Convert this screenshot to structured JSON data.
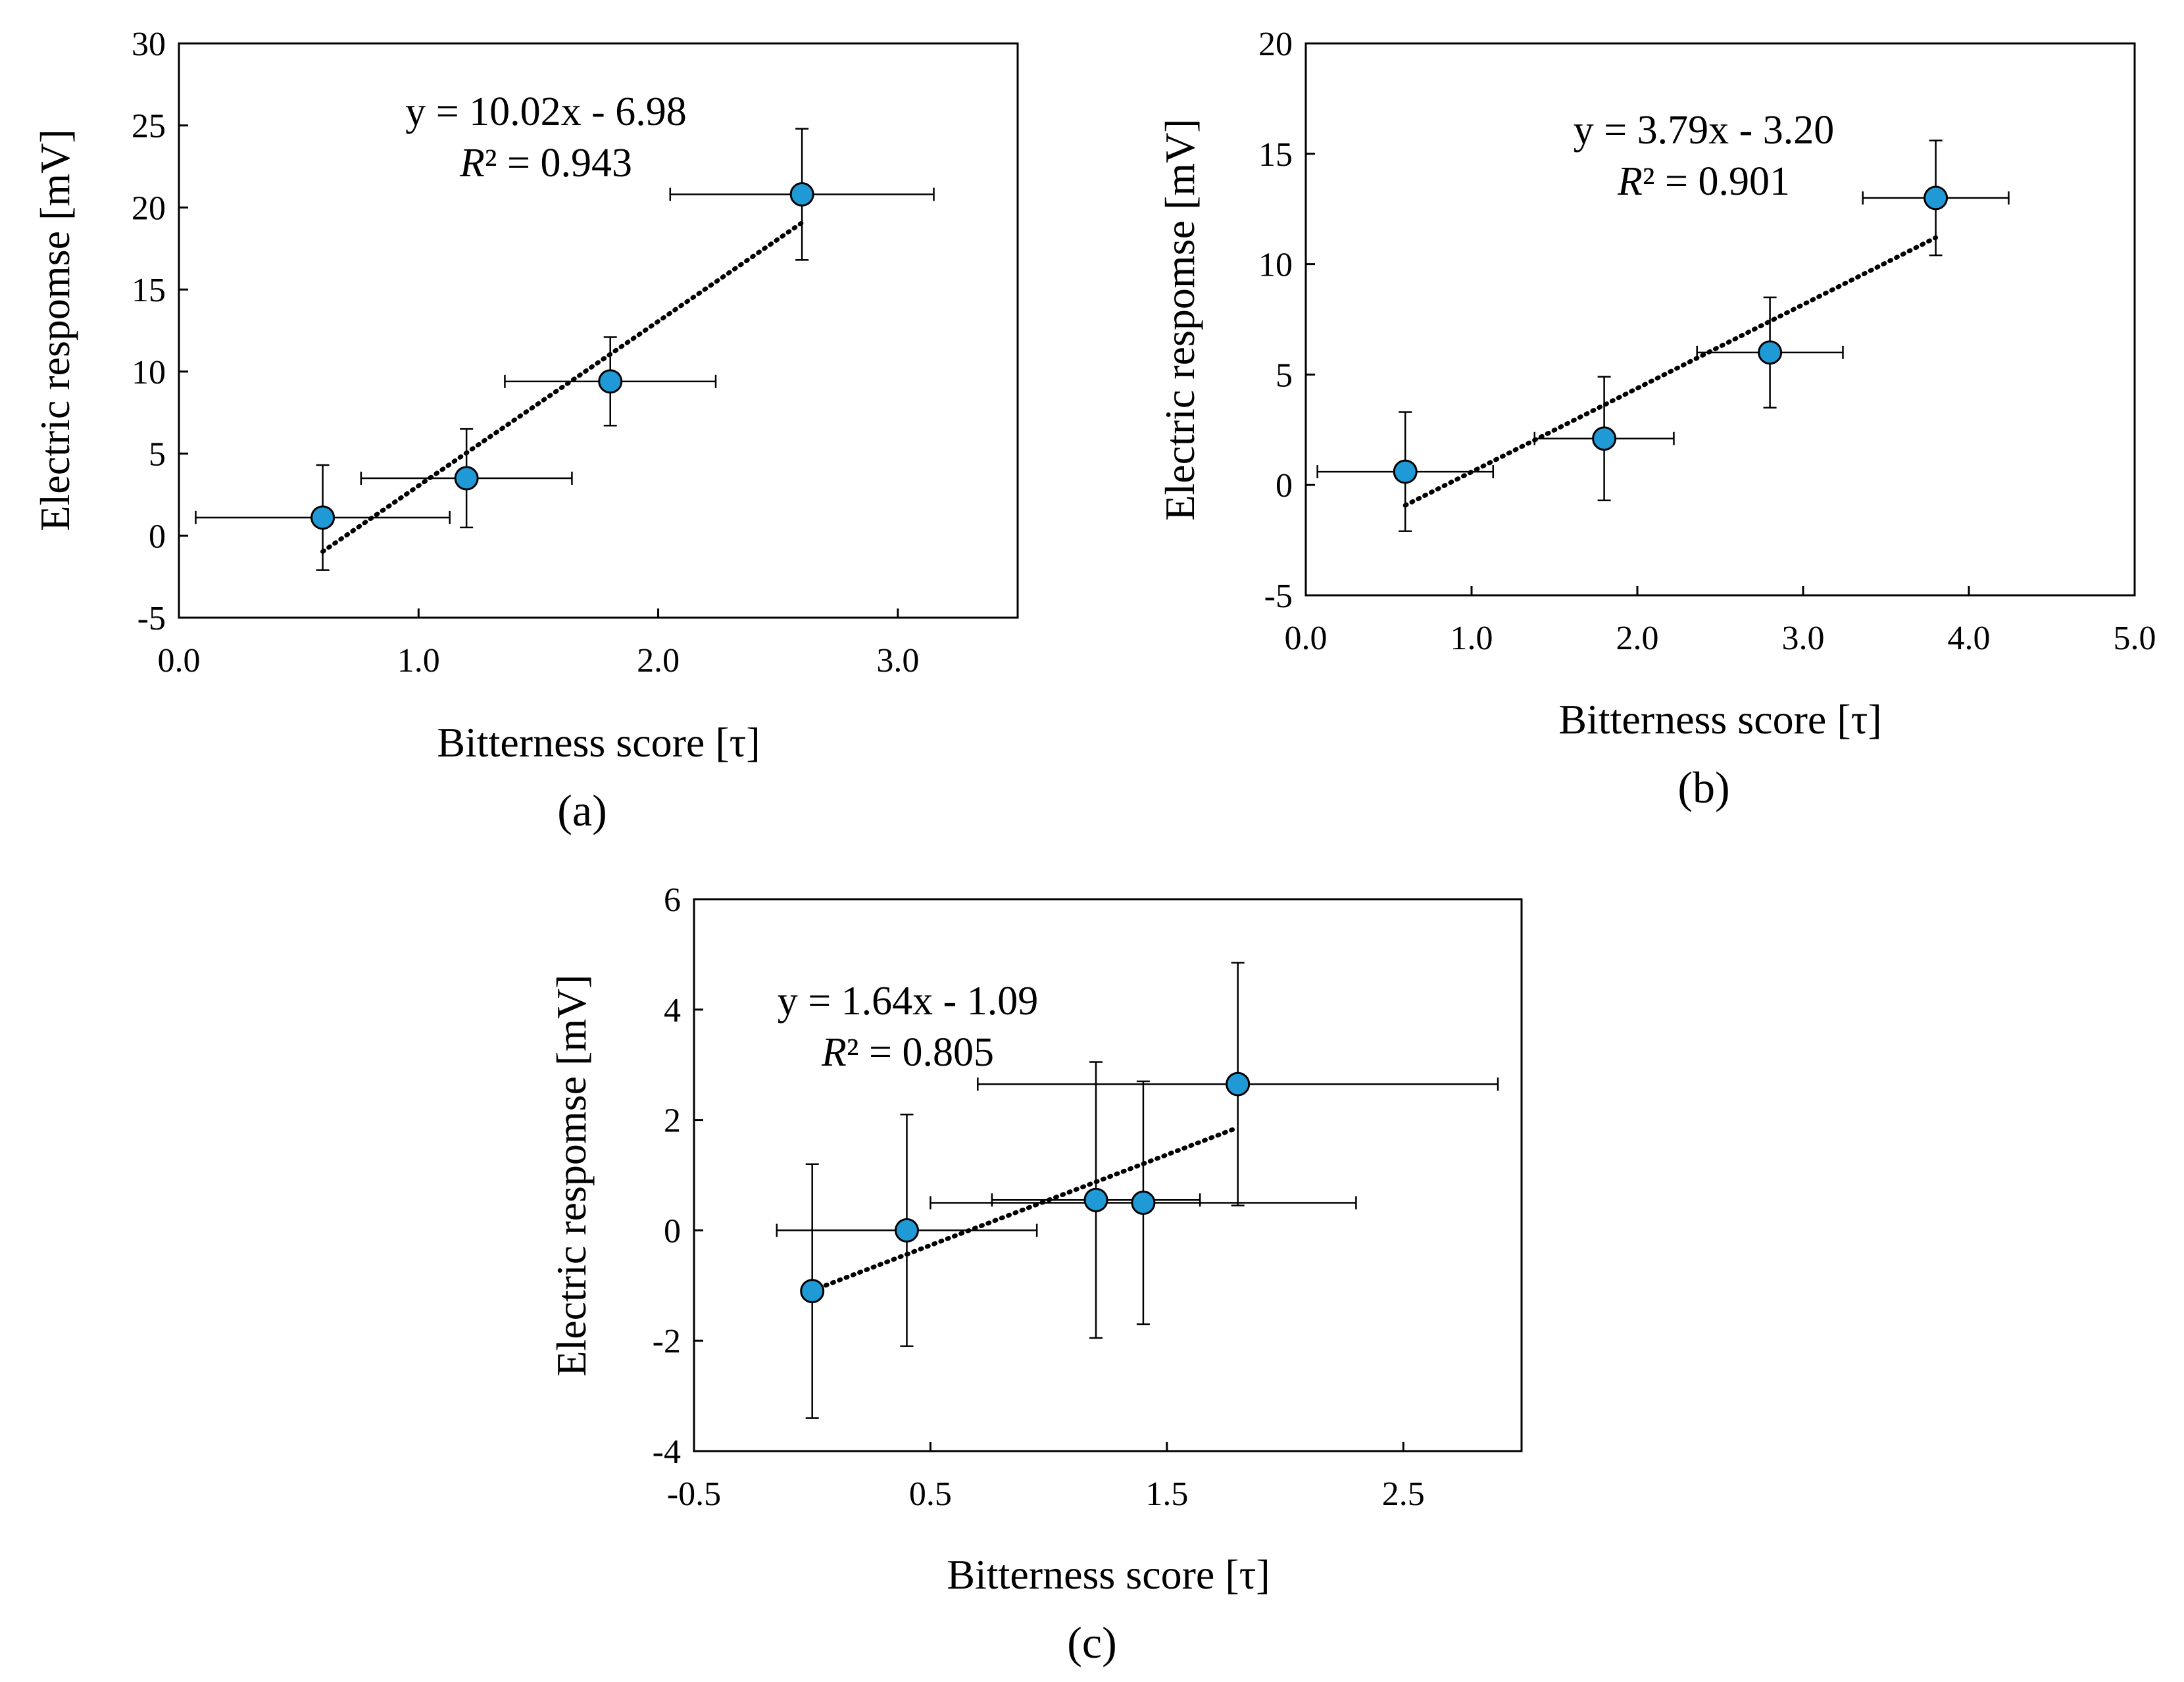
{
  "chart_data": [
    {
      "type": "scatter",
      "panel_label": "(a)",
      "xlabel": "Bitterness score [τ]",
      "ylabel": "Electric respomse [mV]",
      "xlim": [
        0.0,
        3.5
      ],
      "ylim": [
        -5,
        30
      ],
      "xticks": [
        0.0,
        1.0,
        2.0,
        3.0
      ],
      "xtick_labels": [
        "0.0",
        "1.0",
        "2.0",
        "3.0"
      ],
      "yticks": [
        -5,
        0,
        5,
        10,
        15,
        20,
        25,
        30
      ],
      "ytick_labels": [
        "-5",
        "0",
        "5",
        "10",
        "15",
        "20",
        "25",
        "30"
      ],
      "points": [
        {
          "x": 0.6,
          "y": 1.1,
          "xerr": 0.53,
          "yerr": 3.2
        },
        {
          "x": 1.2,
          "y": 3.5,
          "xerr": 0.44,
          "yerr": 3.0
        },
        {
          "x": 1.8,
          "y": 9.4,
          "xerr": 0.44,
          "yerr": 2.7
        },
        {
          "x": 2.6,
          "y": 20.8,
          "xerr": 0.55,
          "yerr": 4.0
        }
      ],
      "trendline": {
        "slope": 10.02,
        "intercept": -6.98,
        "x_range": [
          0.6,
          2.6
        ]
      },
      "equation": "y = 10.02x - 6.98",
      "r2_symbol": "R",
      "r2_text": "² = 0.943"
    },
    {
      "type": "scatter",
      "panel_label": "(b)",
      "xlabel": "Bitterness score [τ]",
      "ylabel": "Electric respomse [mV]",
      "xlim": [
        0.0,
        5.0
      ],
      "ylim": [
        -5,
        20
      ],
      "xticks": [
        0.0,
        1.0,
        2.0,
        3.0,
        4.0,
        5.0
      ],
      "xtick_labels": [
        "0.0",
        "1.0",
        "2.0",
        "3.0",
        "4.0",
        "5.0"
      ],
      "yticks": [
        -5,
        0,
        5,
        10,
        15,
        20
      ],
      "ytick_labels": [
        "-5",
        "0",
        "5",
        "10",
        "15",
        "20"
      ],
      "points": [
        {
          "x": 0.6,
          "y": 0.6,
          "xerr": 0.53,
          "yerr": 2.7
        },
        {
          "x": 1.8,
          "y": 2.1,
          "xerr": 0.42,
          "yerr": 2.8
        },
        {
          "x": 2.8,
          "y": 6.0,
          "xerr": 0.44,
          "yerr": 2.5
        },
        {
          "x": 3.8,
          "y": 13.0,
          "xerr": 0.44,
          "yerr": 2.6
        }
      ],
      "trendline": {
        "slope": 3.79,
        "intercept": -3.2,
        "x_range": [
          0.6,
          3.8
        ]
      },
      "equation": "y = 3.79x - 3.20",
      "r2_symbol": "R",
      "r2_text": "² = 0.901"
    },
    {
      "type": "scatter",
      "panel_label": "(c)",
      "xlabel": "Bitterness score [τ]",
      "ylabel": "Electric respomse [mV]",
      "xlim": [
        -0.5,
        3.0
      ],
      "ylim": [
        -4,
        6
      ],
      "xticks": [
        -0.5,
        0.5,
        1.5,
        2.5
      ],
      "xtick_labels": [
        "-0.5",
        "0.5",
        "1.5",
        "2.5"
      ],
      "yticks": [
        -4,
        -2,
        0,
        2,
        4,
        6
      ],
      "ytick_labels": [
        "-4",
        "-2",
        "0",
        "2",
        "4",
        "6"
      ],
      "points": [
        {
          "x": 0.0,
          "y": -1.1,
          "xerr": 0.0,
          "yerr": 2.3
        },
        {
          "x": 0.4,
          "y": 0.0,
          "xerr": 0.55,
          "yerr": 2.1
        },
        {
          "x": 1.2,
          "y": 0.55,
          "xerr": 0.44,
          "yerr": 2.5
        },
        {
          "x": 1.4,
          "y": 0.5,
          "xerr": 0.9,
          "yerr": 2.2
        },
        {
          "x": 1.8,
          "y": 2.65,
          "xerr": 1.1,
          "yerr": 2.2
        }
      ],
      "trendline": {
        "slope": 1.64,
        "intercept": -1.09,
        "x_range": [
          0.0,
          1.8
        ]
      },
      "equation": "y = 1.64x - 1.09",
      "r2_symbol": "R",
      "r2_text": "² = 0.805"
    }
  ],
  "colors": {
    "marker_fill": "#1f9ad6",
    "marker_stroke": "#000000",
    "axis": "#000000",
    "trendline": "#000000",
    "background": "#ffffff"
  }
}
